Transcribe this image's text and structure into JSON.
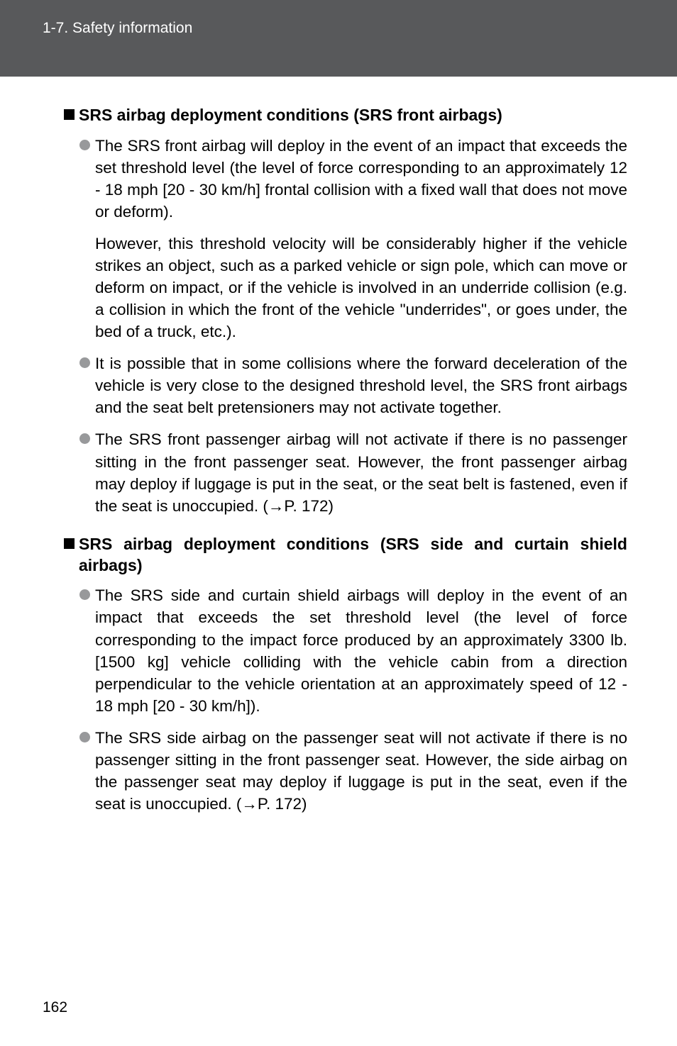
{
  "header": {
    "breadcrumb": "1-7. Safety information"
  },
  "sections": [
    {
      "heading": "SRS airbag deployment conditions (SRS front airbags)",
      "items": [
        {
          "text": "The SRS front airbag will deploy in the event of an impact that exceeds the set threshold level (the level of force corresponding to an approximately 12 - 18 mph [20 - 30 km/h] frontal collision with a fixed wall that does not move or deform).",
          "continuation": "However, this threshold velocity will be considerably higher if the vehicle strikes an object, such as a parked vehicle or sign pole, which can move or deform on impact, or if the vehicle is involved in an underride collision (e.g. a collision in which the front of the vehicle \"underrides\", or goes under, the bed of a truck, etc.)."
        },
        {
          "text": "It is possible that in some collisions where the forward deceleration of the vehicle is very close to the designed threshold level, the SRS front airbags and the seat belt pretensioners may not activate together."
        },
        {
          "text": "The SRS front passenger airbag will not activate if there is no passenger sitting in the front passenger seat. However, the front passenger airbag may deploy if luggage is put in the seat, or the seat belt is fastened, even if the seat is unoccupied. (→P. 172)"
        }
      ]
    },
    {
      "heading": "SRS airbag deployment conditions (SRS side and curtain shield airbags)",
      "items": [
        {
          "text": "The SRS side and curtain shield airbags will deploy in the event of an impact that exceeds the set threshold level (the level of force corresponding to the impact force produced by an approximately 3300 lb. [1500 kg] vehicle colliding with the vehicle cabin from a direction perpendicular to the vehicle orientation at an approximately speed of 12 - 18 mph [20 - 30 km/h])."
        },
        {
          "text": "The SRS side airbag on the passenger seat will not activate if there is no passenger sitting in the front passenger seat. However, the side airbag on the passenger seat may deploy if luggage is put in the seat, even if the seat is unoccupied. (→P. 172)"
        }
      ]
    }
  ],
  "pageNumber": "162"
}
